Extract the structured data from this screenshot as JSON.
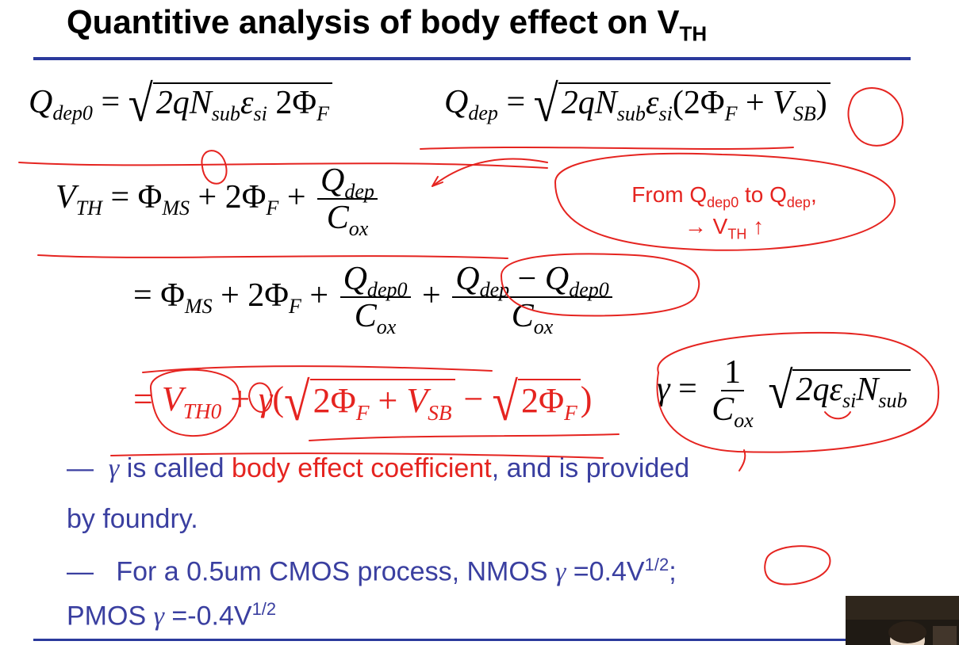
{
  "slide": {
    "title": "Quantitive analysis of body effect on V",
    "title_sub": "TH"
  },
  "equations": {
    "qdep0_lhs": "Q",
    "qdep0_sub": "dep0",
    "eq": "=",
    "radicand_pre": "2qN",
    "sub_sub": "sub",
    "eps": "ε",
    "si": "si",
    "two_phi": "2Φ",
    "F": "F",
    "qdep_sub": "dep",
    "open": "(",
    "plus": "+",
    "V": "V",
    "SB": "SB",
    "close": ")",
    "VTH_V": "V",
    "VTH_sub": "TH",
    "phi": "Φ",
    "MS": "MS",
    "C": "C",
    "ox": "ox",
    "minus": "−",
    "TH0": "TH0",
    "gamma": "γ",
    "one": "1",
    "gamma_rad": "2q"
  },
  "annotation": {
    "line1_a": "From Q",
    "line1_b": "dep0",
    "line1_c": " to Q",
    "line1_d": "dep",
    "line1_e": ",",
    "line2_a": "→ V",
    "line2_b": "TH",
    "line2_c": " ↑"
  },
  "bullets": [
    {
      "dash": "—",
      "gamma": "γ",
      "text_a": " is called ",
      "text_red": "body effect coefficient",
      "text_b": ", and is provided",
      "text_c": "by foundry."
    },
    {
      "dash": "—",
      "text_a": "For a 0.5um CMOS process, NMOS ",
      "gamma": "γ",
      "text_b": " =0.4V",
      "sup": "1/2",
      "text_c": ";",
      "text_d": "PMOS ",
      "text_e": " =-0.4V"
    }
  ],
  "colors": {
    "title_rule": "#2b3a9c",
    "bullet_text": "#3a3fa0",
    "highlight_red": "#e52420"
  }
}
